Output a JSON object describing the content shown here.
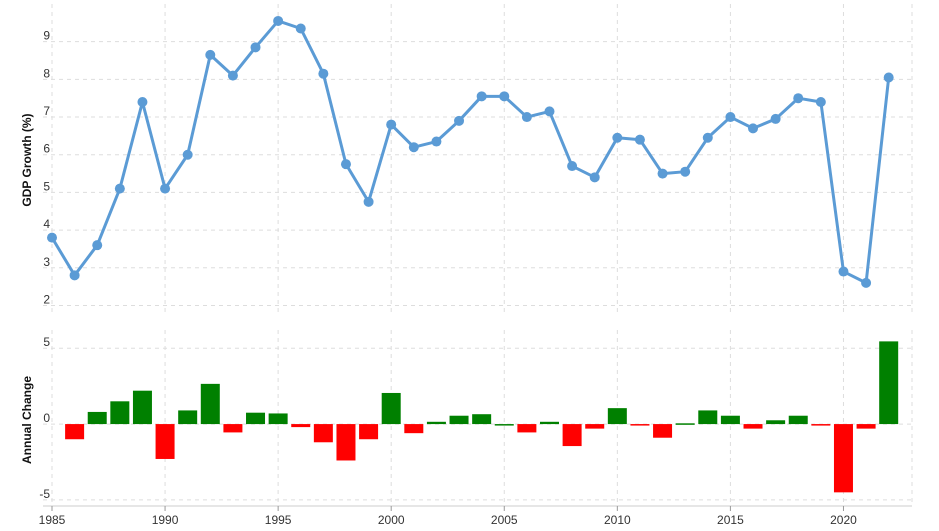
{
  "chart_data": {
    "type": "line",
    "years": [
      1985,
      1986,
      1987,
      1988,
      1989,
      1990,
      1991,
      1992,
      1993,
      1994,
      1995,
      1996,
      1997,
      1998,
      1999,
      2000,
      2001,
      2002,
      2003,
      2004,
      2005,
      2006,
      2007,
      2008,
      2009,
      2010,
      2011,
      2012,
      2013,
      2014,
      2015,
      2016,
      2017,
      2018,
      2019,
      2020,
      2021,
      2022
    ],
    "growth": [
      3.8,
      2.8,
      3.6,
      5.1,
      7.4,
      5.1,
      6.0,
      8.65,
      8.1,
      8.85,
      9.55,
      9.35,
      8.15,
      5.75,
      4.75,
      6.8,
      6.2,
      6.35,
      6.9,
      7.55,
      7.55,
      7.0,
      7.15,
      5.7,
      5.4,
      6.45,
      6.4,
      5.5,
      5.55,
      6.45,
      7.0,
      6.7,
      6.95,
      7.5,
      7.4,
      2.9,
      2.6,
      8.05
    ],
    "annual_change": [
      null,
      -1.0,
      0.8,
      1.5,
      2.2,
      -2.3,
      0.9,
      2.65,
      -0.55,
      0.75,
      0.7,
      -0.2,
      -1.2,
      -2.4,
      -1.0,
      2.05,
      -0.6,
      0.15,
      0.55,
      0.65,
      0.0,
      -0.55,
      0.15,
      -1.45,
      -0.3,
      1.05,
      -0.05,
      -0.9,
      0.05,
      0.9,
      0.55,
      -0.3,
      0.25,
      0.55,
      -0.1,
      -4.5,
      -0.3,
      5.45
    ],
    "top_panel": {
      "ylabel": "GDP Growth (%)",
      "ylim": [
        1.8,
        10
      ],
      "yticks": [
        "2",
        "3",
        "4",
        "5",
        "6",
        "7",
        "8",
        "9"
      ],
      "line_color": "#5b9bd5",
      "grid": true
    },
    "bottom_panel": {
      "ylabel": "Annual Change",
      "ylim": [
        -5.4,
        6.2
      ],
      "yticks": [
        "5",
        "0",
        "-5"
      ],
      "positive_color": "#008000",
      "negative_color": "#ff0000",
      "grid": true
    },
    "x_ticks": [
      "1985",
      "1990",
      "1995",
      "2000",
      "2005",
      "2010",
      "2015",
      "2020"
    ],
    "xlim": [
      1985,
      2022.5
    ]
  }
}
